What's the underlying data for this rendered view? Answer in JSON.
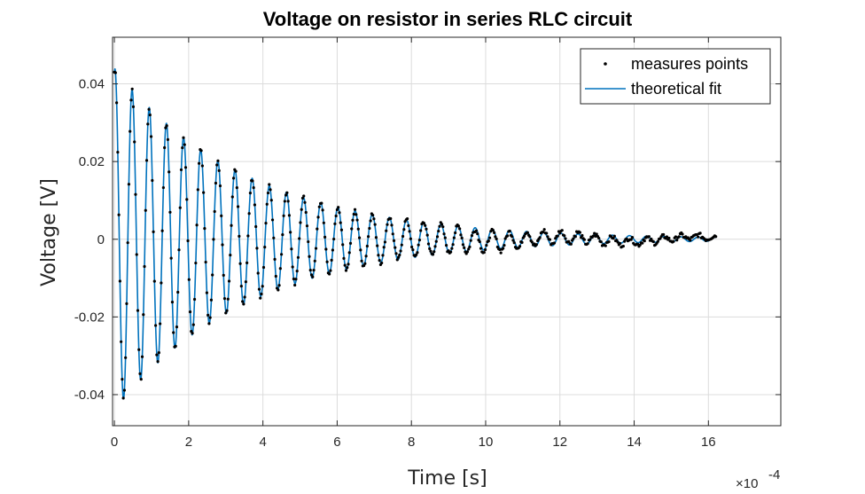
{
  "chart_data": {
    "type": "line",
    "title": "Voltage on resistor in series RLC circuit",
    "xlabel": "Time [s]",
    "ylabel": "Voltage [V]",
    "x_exponent_label": "×10",
    "x_exponent": "-4",
    "xlim": [
      -0.05,
      17.95
    ],
    "ylim": [
      -0.048,
      0.052
    ],
    "x_scale_note": "x in units of 1e-4 s",
    "xticks": [
      0,
      2,
      4,
      6,
      8,
      10,
      12,
      14,
      16
    ],
    "xtick_labels": [
      "0",
      "2",
      "4",
      "6",
      "8",
      "10",
      "12",
      "14",
      "16"
    ],
    "yticks": [
      0.04,
      0.02,
      0,
      -0.02,
      -0.04
    ],
    "ytick_labels": [
      "0.04",
      "0.02",
      "0",
      "-0.02",
      "-0.04"
    ],
    "grid": true,
    "legend_position": "top-right",
    "series": [
      {
        "name": "measures points",
        "style": "dots",
        "color": "#000000",
        "x_range": [
          0,
          16.2
        ],
        "amplitude": 0.044,
        "decay_time": 3.6,
        "period": 0.462,
        "phase_offset": 0.1,
        "sample_step": 0.03
      },
      {
        "name": "theoretical fit",
        "style": "line",
        "color": "#0072BD",
        "x_range": [
          0,
          16.2
        ],
        "amplitude": 0.044,
        "decay_time": 3.6,
        "period": 0.462,
        "phase_offset": 0.1
      }
    ]
  }
}
